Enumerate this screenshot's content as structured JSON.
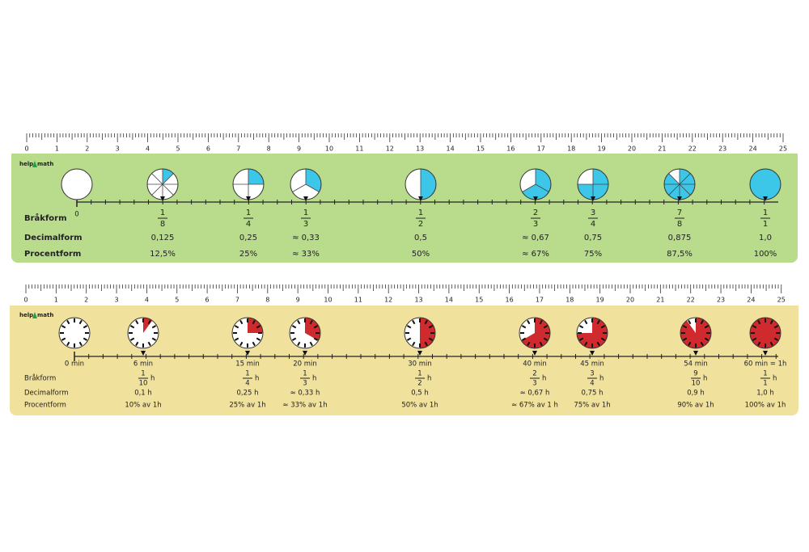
{
  "rulers": [
    {
      "scale": [
        0,
        1,
        2,
        3,
        4,
        5,
        6,
        7,
        8,
        9,
        10,
        11,
        12,
        13,
        14,
        15,
        16,
        17,
        18,
        19,
        20,
        21,
        22,
        23,
        24,
        25
      ],
      "logo_a": "help",
      "logo_b": "math",
      "zero_label": "0",
      "row_labels": [
        "Bråkform",
        "Decimalform",
        "Procentform"
      ],
      "items": [
        {
          "numerator": 1,
          "denominator": 8,
          "decimal": "0,125",
          "percent": "12,5%"
        },
        {
          "numerator": 1,
          "denominator": 4,
          "decimal": "0,25",
          "percent": "25%"
        },
        {
          "numerator": 1,
          "denominator": 3,
          "decimal": "≈ 0,33",
          "percent": "≈ 33%"
        },
        {
          "numerator": 1,
          "denominator": 2,
          "decimal": "0,5",
          "percent": "50%"
        },
        {
          "numerator": 2,
          "denominator": 3,
          "decimal": "≈ 0,67",
          "percent": "≈ 67%"
        },
        {
          "numerator": 3,
          "denominator": 4,
          "decimal": "0,75",
          "percent": "75%"
        },
        {
          "numerator": 7,
          "denominator": 8,
          "decimal": "0,875",
          "percent": "87,5%"
        },
        {
          "numerator": 1,
          "denominator": 1,
          "decimal": "1,0",
          "percent": "100%"
        }
      ]
    },
    {
      "scale": [
        0,
        1,
        2,
        3,
        4,
        5,
        6,
        7,
        8,
        9,
        10,
        11,
        12,
        13,
        14,
        15,
        16,
        17,
        18,
        19,
        20,
        21,
        22,
        23,
        24,
        25
      ],
      "logo_a": "help",
      "logo_b": "math",
      "zero_label": "0 min",
      "fraction_unit": "h",
      "row_labels": [
        "Bråkform",
        "Decimalform",
        "Procentform"
      ],
      "items": [
        {
          "time": "6 min",
          "numerator": 1,
          "denominator": 10,
          "decimal": "0,1 h",
          "percent": "10% av 1h"
        },
        {
          "time": "15 min",
          "numerator": 1,
          "denominator": 4,
          "decimal": "0,25 h",
          "percent": "25% av 1h"
        },
        {
          "time": "20 min",
          "numerator": 1,
          "denominator": 3,
          "decimal": "≈ 0,33 h",
          "percent": "≈ 33% av 1h"
        },
        {
          "time": "30 min",
          "numerator": 1,
          "denominator": 2,
          "decimal": "0,5 h",
          "percent": "50% av 1h"
        },
        {
          "time": "40 min",
          "numerator": 2,
          "denominator": 3,
          "decimal": "≈ 0,67 h",
          "percent": "≈ 67% av 1 h"
        },
        {
          "time": "45 min",
          "numerator": 3,
          "denominator": 4,
          "decimal": "0,75 h",
          "percent": "75% av 1h"
        },
        {
          "time": "54 min",
          "numerator": 9,
          "denominator": 10,
          "decimal": "0,9 h",
          "percent": "90% av 1h"
        },
        {
          "time": "60 min = 1h",
          "numerator": 1,
          "denominator": 1,
          "decimal": "1,0 h",
          "percent": "100% av 1h"
        }
      ]
    }
  ]
}
